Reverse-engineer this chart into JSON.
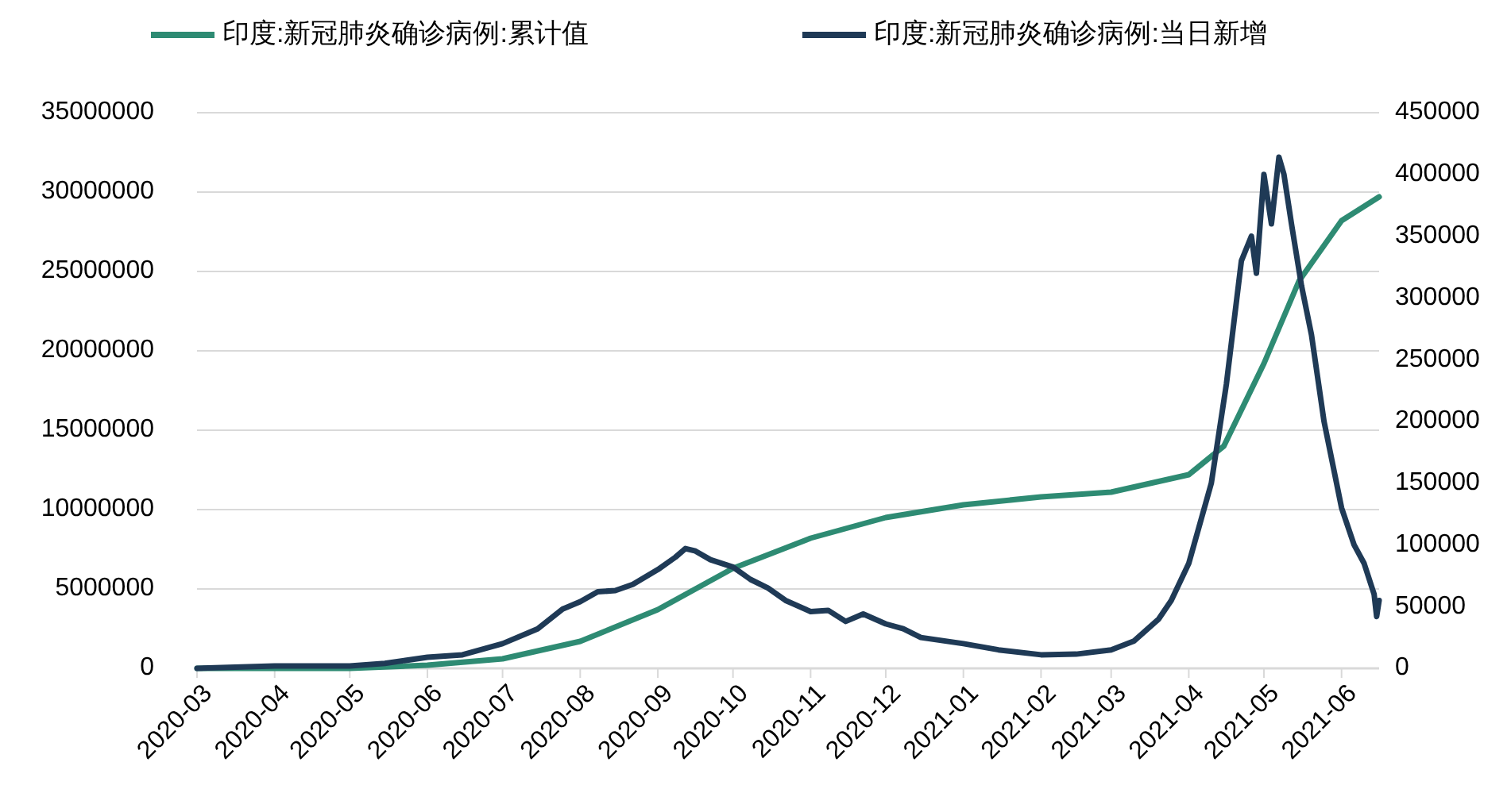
{
  "chart_data": {
    "type": "line",
    "legend": "top",
    "grid": "y",
    "line_style": "solid",
    "marker": "none",
    "xlim": [
      "2020-03-01",
      "2021-06-16"
    ],
    "xticks": [
      {
        "value": "2020-03-01",
        "label": "2020-03"
      },
      {
        "value": "2020-04-01",
        "label": "2020-04"
      },
      {
        "value": "2020-05-01",
        "label": "2020-05"
      },
      {
        "value": "2020-06-01",
        "label": "2020-06"
      },
      {
        "value": "2020-07-01",
        "label": "2020-07"
      },
      {
        "value": "2020-08-01",
        "label": "2020-08"
      },
      {
        "value": "2020-09-01",
        "label": "2020-09"
      },
      {
        "value": "2020-10-01",
        "label": "2020-10"
      },
      {
        "value": "2020-11-01",
        "label": "2020-11"
      },
      {
        "value": "2020-12-01",
        "label": "2020-12"
      },
      {
        "value": "2021-01-01",
        "label": "2021-01"
      },
      {
        "value": "2021-02-01",
        "label": "2021-02"
      },
      {
        "value": "2021-03-01",
        "label": "2021-03"
      },
      {
        "value": "2021-04-01",
        "label": "2021-04"
      },
      {
        "value": "2021-05-01",
        "label": "2021-05"
      },
      {
        "value": "2021-06-01",
        "label": "2021-06"
      }
    ],
    "ylim": [
      0,
      35000000
    ],
    "yticks": [
      0,
      5000000,
      10000000,
      15000000,
      20000000,
      25000000,
      30000000,
      35000000
    ],
    "y2lim": [
      0,
      450000
    ],
    "y2ticks": [
      0,
      50000,
      100000,
      150000,
      200000,
      250000,
      300000,
      350000,
      400000,
      450000
    ],
    "series": [
      {
        "name": "印度:新冠肺炎确诊病例:累计值",
        "color": "#2e8b73",
        "x": [
          "2020-03-01",
          "2020-04-01",
          "2020-05-01",
          "2020-06-01",
          "2020-07-01",
          "2020-08-01",
          "2020-09-01",
          "2020-10-01",
          "2020-11-01",
          "2020-12-01",
          "2021-01-01",
          "2021-02-01",
          "2021-03-01",
          "2021-04-01",
          "2021-04-15",
          "2021-05-01",
          "2021-05-15",
          "2021-06-01",
          "2021-06-16"
        ],
        "values": [
          0,
          0,
          0,
          200000,
          600000,
          1700000,
          3700000,
          6300000,
          8200000,
          9500000,
          10300000,
          10800000,
          11100000,
          12200000,
          14000000,
          19200000,
          24400000,
          28200000,
          29700000
        ]
      },
      {
        "name": "印度:新冠肺炎确诊病例:当日新增",
        "color": "#1f3a56",
        "axis": "y2",
        "x": [
          "2020-03-01",
          "2020-04-01",
          "2020-05-01",
          "2020-05-15",
          "2020-06-01",
          "2020-06-15",
          "2020-07-01",
          "2020-07-15",
          "2020-07-25",
          "2020-08-01",
          "2020-08-08",
          "2020-08-15",
          "2020-08-22",
          "2020-09-01",
          "2020-09-08",
          "2020-09-12",
          "2020-09-16",
          "2020-09-22",
          "2020-10-01",
          "2020-10-08",
          "2020-10-15",
          "2020-10-22",
          "2020-11-01",
          "2020-11-08",
          "2020-11-15",
          "2020-11-22",
          "2020-12-01",
          "2020-12-08",
          "2020-12-15",
          "2021-01-01",
          "2021-01-15",
          "2021-02-01",
          "2021-02-15",
          "2021-03-01",
          "2021-03-10",
          "2021-03-20",
          "2021-03-25",
          "2021-04-01",
          "2021-04-10",
          "2021-04-16",
          "2021-04-22",
          "2021-04-26",
          "2021-04-28",
          "2021-05-01",
          "2021-05-04",
          "2021-05-07",
          "2021-05-09",
          "2021-05-12",
          "2021-05-16",
          "2021-05-20",
          "2021-05-25",
          "2021-06-01",
          "2021-06-06",
          "2021-06-10",
          "2021-06-14",
          "2021-06-15",
          "2021-06-16"
        ],
        "values": [
          0,
          2000,
          2000,
          4000,
          9000,
          11000,
          20000,
          32000,
          48000,
          54000,
          62000,
          63000,
          68000,
          80000,
          90000,
          97000,
          95000,
          88000,
          82000,
          72000,
          65000,
          55000,
          46000,
          47000,
          38000,
          44000,
          36000,
          32000,
          25000,
          20000,
          15000,
          11000,
          11500,
          15000,
          22000,
          40000,
          55000,
          85000,
          150000,
          230000,
          330000,
          350000,
          320000,
          400000,
          360000,
          414000,
          400000,
          360000,
          310000,
          270000,
          200000,
          130000,
          100000,
          85000,
          60000,
          42000,
          55000
        ]
      }
    ]
  }
}
